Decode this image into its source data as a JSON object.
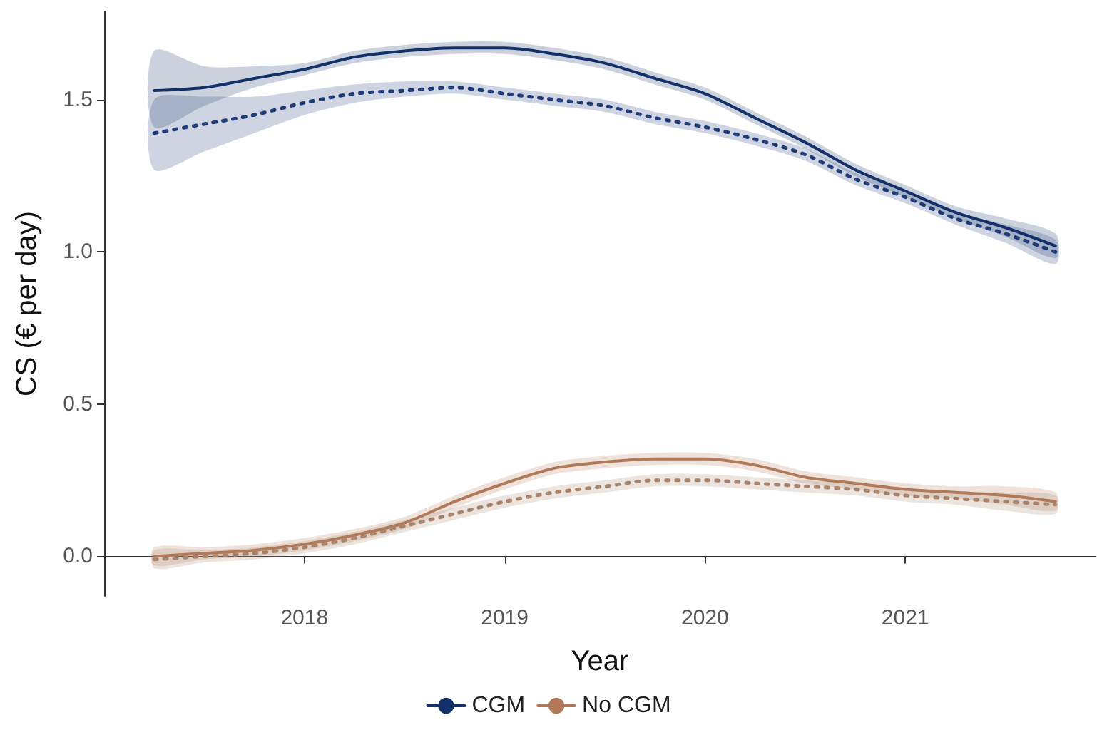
{
  "chart_data": {
    "type": "line",
    "xlabel": "Year",
    "ylabel": "CS (€ per day)",
    "x": [
      2017.25,
      2017.5,
      2017.75,
      2018,
      2018.25,
      2018.5,
      2018.75,
      2019,
      2019.25,
      2019.5,
      2019.75,
      2020,
      2020.25,
      2020.5,
      2020.75,
      2021,
      2021.25,
      2021.5,
      2021.75
    ],
    "xlim": [
      2017.0,
      2021.95
    ],
    "xticks": [
      2018,
      2019,
      2020,
      2021
    ],
    "ylim": [
      -0.13,
      1.79
    ],
    "yticks": [
      {
        "value": 0,
        "label": "0.0"
      },
      {
        "value": 0.5,
        "label": "0.5"
      },
      {
        "value": 1,
        "label": "1.0"
      },
      {
        "value": 1.5,
        "label": "1.5"
      }
    ],
    "grid": false,
    "legend": "bottom",
    "marker": "none",
    "series": [
      {
        "name": "CGM",
        "color": "#14306a",
        "line_style": "solid",
        "values": [
          1.53,
          1.54,
          1.57,
          1.6,
          1.64,
          1.66,
          1.67,
          1.67,
          1.65,
          1.62,
          1.57,
          1.52,
          1.44,
          1.36,
          1.27,
          1.2,
          1.13,
          1.08,
          1.02
        ],
        "lower": [
          1.41,
          1.48,
          1.54,
          1.58,
          1.62,
          1.64,
          1.65,
          1.65,
          1.63,
          1.6,
          1.55,
          1.5,
          1.42,
          1.34,
          1.25,
          1.18,
          1.11,
          1.05,
          0.98
        ],
        "upper": [
          1.66,
          1.61,
          1.61,
          1.62,
          1.66,
          1.68,
          1.69,
          1.69,
          1.67,
          1.64,
          1.59,
          1.54,
          1.46,
          1.38,
          1.29,
          1.22,
          1.15,
          1.11,
          1.06
        ]
      },
      {
        "color": "#1f3c78",
        "line_style": "dotted",
        "values": [
          1.39,
          1.42,
          1.45,
          1.49,
          1.52,
          1.53,
          1.54,
          1.52,
          1.5,
          1.48,
          1.44,
          1.41,
          1.37,
          1.32,
          1.24,
          1.18,
          1.11,
          1.06,
          1.0
        ],
        "lower": [
          1.27,
          1.33,
          1.39,
          1.45,
          1.49,
          1.51,
          1.52,
          1.5,
          1.48,
          1.46,
          1.42,
          1.39,
          1.35,
          1.3,
          1.22,
          1.16,
          1.09,
          1.03,
          0.96
        ],
        "upper": [
          1.5,
          1.51,
          1.51,
          1.53,
          1.55,
          1.56,
          1.56,
          1.54,
          1.52,
          1.5,
          1.46,
          1.43,
          1.39,
          1.34,
          1.26,
          1.2,
          1.13,
          1.09,
          1.04
        ]
      },
      {
        "name": "No CGM",
        "color": "#b07a5a",
        "line_style": "solid",
        "values": [
          0.0,
          0.01,
          0.02,
          0.04,
          0.07,
          0.11,
          0.18,
          0.24,
          0.29,
          0.31,
          0.32,
          0.32,
          0.3,
          0.26,
          0.24,
          0.22,
          0.21,
          0.2,
          0.18
        ],
        "lower": [
          -0.03,
          -0.01,
          0.0,
          0.02,
          0.05,
          0.09,
          0.16,
          0.22,
          0.27,
          0.29,
          0.3,
          0.3,
          0.28,
          0.24,
          0.22,
          0.2,
          0.19,
          0.17,
          0.15
        ],
        "upper": [
          0.03,
          0.03,
          0.04,
          0.06,
          0.09,
          0.13,
          0.2,
          0.26,
          0.31,
          0.33,
          0.34,
          0.34,
          0.32,
          0.28,
          0.26,
          0.24,
          0.23,
          0.23,
          0.21
        ]
      },
      {
        "color": "#a8846c",
        "line_style": "dotted",
        "values": [
          -0.01,
          0.0,
          0.01,
          0.03,
          0.06,
          0.1,
          0.14,
          0.18,
          0.21,
          0.23,
          0.25,
          0.25,
          0.24,
          0.23,
          0.22,
          0.2,
          0.19,
          0.18,
          0.17
        ],
        "lower": [
          -0.04,
          -0.02,
          -0.01,
          0.01,
          0.04,
          0.08,
          0.12,
          0.16,
          0.19,
          0.21,
          0.23,
          0.23,
          0.22,
          0.21,
          0.2,
          0.18,
          0.17,
          0.15,
          0.14
        ],
        "upper": [
          0.02,
          0.02,
          0.03,
          0.05,
          0.08,
          0.12,
          0.16,
          0.2,
          0.23,
          0.25,
          0.27,
          0.27,
          0.26,
          0.25,
          0.24,
          0.22,
          0.21,
          0.21,
          0.2
        ]
      }
    ]
  }
}
